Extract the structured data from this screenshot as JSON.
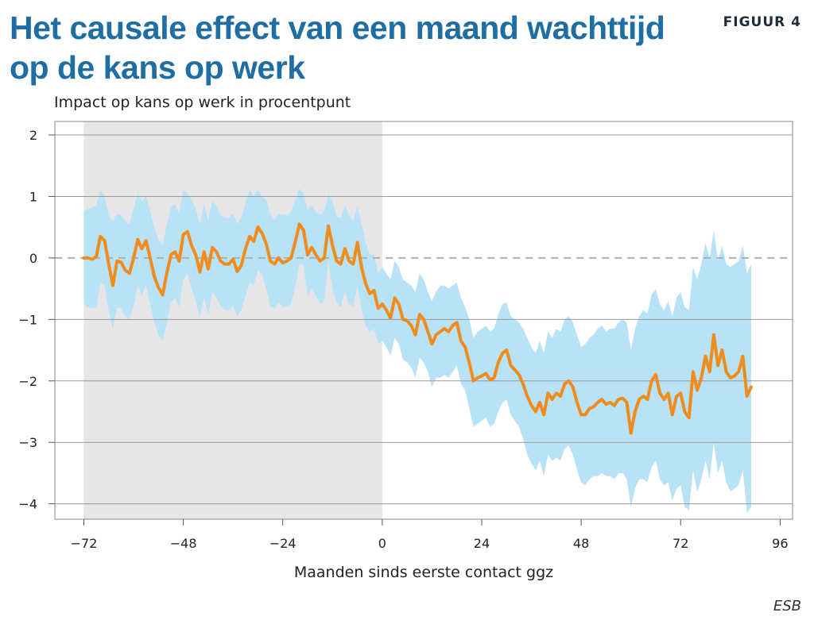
{
  "header": {
    "title": "Het causale effect van een maand wachttijd op de kans op werk",
    "figure_label": "FIGUUR 4"
  },
  "source": "ESB",
  "chart_data": {
    "type": "line",
    "title": "Het causale effect van een maand wachttijd op de kans op werk",
    "xlabel": "Maanden sinds eerste contact ggz",
    "ylabel": "Impact op kans op werk in procentpunt",
    "xlim": [
      -79,
      99
    ],
    "ylim": [
      -4.25,
      2.22
    ],
    "x_ticks": [
      -72,
      -48,
      -24,
      0,
      24,
      48,
      72,
      96
    ],
    "x_tick_labels": [
      "−72",
      "−48",
      "−24",
      "0",
      "24",
      "48",
      "72",
      "96"
    ],
    "y_ticks": [
      2,
      1,
      0,
      -1,
      -2,
      -3,
      -4
    ],
    "y_tick_labels": [
      "2",
      "1",
      "0",
      "−1",
      "−2",
      "−3",
      "−4"
    ],
    "grid": "horizontal",
    "reference_line": {
      "y": 0,
      "style": "dashed"
    },
    "shaded_region": {
      "x_start": -72,
      "x_end": 0
    },
    "colors": {
      "line": "#f08c1e",
      "band": "#b8e2f5",
      "shade": "#e6e6e8",
      "grid": "#999999",
      "reference": "#b0b0b0"
    },
    "x_start": -72,
    "x_step": 1,
    "values": [
      0.0,
      0.0,
      -0.02,
      0.02,
      0.35,
      0.28,
      -0.1,
      -0.45,
      -0.05,
      -0.07,
      -0.2,
      -0.25,
      0.0,
      0.3,
      0.15,
      0.28,
      0.0,
      -0.3,
      -0.48,
      -0.6,
      -0.25,
      0.05,
      0.1,
      -0.05,
      0.38,
      0.43,
      0.2,
      0.05,
      -0.23,
      0.1,
      -0.18,
      0.17,
      0.1,
      -0.05,
      -0.1,
      -0.1,
      -0.02,
      -0.22,
      -0.12,
      0.15,
      0.35,
      0.27,
      0.5,
      0.4,
      0.23,
      -0.05,
      -0.1,
      0.0,
      -0.08,
      -0.05,
      0.0,
      0.26,
      0.55,
      0.45,
      0.05,
      0.17,
      0.05,
      -0.05,
      0.0,
      0.52,
      0.2,
      -0.05,
      -0.1,
      0.15,
      -0.05,
      -0.1,
      0.25,
      -0.15,
      -0.42,
      -0.58,
      -0.53,
      -0.82,
      -0.75,
      -0.85,
      -0.98,
      -0.65,
      -0.75,
      -1.0,
      -1.02,
      -1.1,
      -1.25,
      -0.92,
      -1.0,
      -1.2,
      -1.4,
      -1.25,
      -1.2,
      -1.15,
      -1.2,
      -1.1,
      -1.05,
      -1.35,
      -1.45,
      -1.7,
      -2.0,
      -1.95,
      -1.92,
      -1.88,
      -1.98,
      -1.95,
      -1.7,
      -1.55,
      -1.5,
      -1.75,
      -1.82,
      -1.9,
      -2.05,
      -2.25,
      -2.4,
      -2.5,
      -2.35,
      -2.55,
      -2.2,
      -2.3,
      -2.2,
      -2.25,
      -2.05,
      -2.0,
      -2.1,
      -2.35,
      -2.55,
      -2.55,
      -2.45,
      -2.42,
      -2.35,
      -2.3,
      -2.38,
      -2.35,
      -2.4,
      -2.3,
      -2.28,
      -2.35,
      -2.85,
      -2.5,
      -2.3,
      -2.25,
      -2.3,
      -2.0,
      -1.9,
      -2.2,
      -2.3,
      -2.2,
      -2.55,
      -2.25,
      -2.2,
      -2.5,
      -2.6,
      -1.85,
      -2.15,
      -1.95,
      -1.6,
      -1.85,
      -1.25,
      -1.75,
      -1.5,
      -1.85,
      -1.95,
      -1.92,
      -1.85,
      -1.6,
      -2.25,
      -2.1
    ],
    "upper": [
      0.75,
      0.8,
      0.82,
      0.85,
      1.1,
      1.0,
      0.7,
      0.6,
      0.72,
      0.7,
      0.6,
      0.55,
      0.8,
      1.05,
      0.92,
      1.0,
      0.75,
      0.5,
      0.3,
      0.2,
      0.55,
      0.82,
      0.88,
      0.72,
      1.1,
      1.05,
      0.95,
      0.8,
      0.55,
      0.88,
      0.6,
      0.92,
      0.85,
      0.7,
      0.65,
      0.65,
      0.72,
      0.55,
      0.65,
      0.9,
      1.1,
      1.0,
      1.12,
      1.0,
      0.95,
      0.72,
      0.62,
      0.72,
      0.7,
      0.7,
      0.75,
      0.95,
      1.12,
      1.05,
      0.78,
      0.85,
      0.75,
      0.7,
      0.75,
      1.05,
      0.92,
      0.68,
      0.65,
      0.85,
      0.7,
      0.6,
      0.85,
      0.55,
      0.25,
      0.05,
      0.05,
      -0.25,
      -0.15,
      -0.25,
      -0.35,
      -0.05,
      -0.15,
      -0.35,
      -0.4,
      -0.45,
      -0.55,
      -0.25,
      -0.35,
      -0.55,
      -0.7,
      -0.55,
      -0.45,
      -0.45,
      -0.5,
      -0.45,
      -0.4,
      -0.65,
      -0.8,
      -1.0,
      -1.3,
      -1.2,
      -1.15,
      -1.1,
      -1.2,
      -1.15,
      -0.92,
      -0.75,
      -0.72,
      -0.95,
      -1.0,
      -1.05,
      -1.15,
      -1.3,
      -1.45,
      -1.55,
      -1.35,
      -1.55,
      -1.2,
      -1.3,
      -1.15,
      -1.2,
      -1.0,
      -0.95,
      -1.05,
      -1.25,
      -1.45,
      -1.4,
      -1.3,
      -1.25,
      -1.15,
      -1.1,
      -1.2,
      -1.15,
      -1.15,
      -1.05,
      -1.0,
      -1.05,
      -1.5,
      -1.15,
      -0.95,
      -0.85,
      -0.9,
      -0.6,
      -0.5,
      -0.75,
      -0.85,
      -0.7,
      -0.95,
      -0.65,
      -0.55,
      -0.8,
      -0.85,
      -0.15,
      -0.35,
      -0.1,
      0.25,
      0.0,
      0.45,
      -0.05,
      0.2,
      -0.1,
      -0.15,
      -0.1,
      -0.05,
      0.2,
      -0.25,
      -0.1
    ],
    "lower": [
      -0.75,
      -0.8,
      -0.82,
      -0.8,
      -0.4,
      -0.45,
      -0.85,
      -1.15,
      -0.8,
      -0.82,
      -0.95,
      -1.0,
      -0.78,
      -0.45,
      -0.6,
      -0.45,
      -0.75,
      -1.05,
      -1.25,
      -1.35,
      -1.05,
      -0.72,
      -0.65,
      -0.8,
      -0.35,
      -0.25,
      -0.5,
      -0.7,
      -0.95,
      -0.65,
      -0.92,
      -0.55,
      -0.65,
      -0.78,
      -0.85,
      -0.85,
      -0.78,
      -0.95,
      -0.85,
      -0.62,
      -0.4,
      -0.45,
      -0.2,
      -0.28,
      -0.5,
      -0.78,
      -0.82,
      -0.72,
      -0.8,
      -0.78,
      -0.75,
      -0.48,
      -0.1,
      -0.12,
      -0.62,
      -0.5,
      -0.62,
      -0.75,
      -0.7,
      -0.05,
      -0.5,
      -0.72,
      -0.8,
      -0.55,
      -0.75,
      -0.8,
      -0.45,
      -0.85,
      -1.1,
      -1.2,
      -1.15,
      -1.4,
      -1.35,
      -1.45,
      -1.6,
      -1.3,
      -1.4,
      -1.65,
      -1.7,
      -1.78,
      -1.95,
      -1.62,
      -1.7,
      -1.85,
      -2.1,
      -1.95,
      -1.95,
      -1.9,
      -1.95,
      -1.85,
      -1.75,
      -2.05,
      -2.15,
      -2.45,
      -2.75,
      -2.7,
      -2.65,
      -2.6,
      -2.75,
      -2.7,
      -2.5,
      -2.35,
      -2.3,
      -2.55,
      -2.65,
      -2.75,
      -2.95,
      -3.2,
      -3.35,
      -3.45,
      -3.3,
      -3.55,
      -3.2,
      -3.3,
      -3.25,
      -3.3,
      -3.1,
      -3.05,
      -3.2,
      -3.45,
      -3.65,
      -3.7,
      -3.6,
      -3.55,
      -3.55,
      -3.5,
      -3.55,
      -3.55,
      -3.6,
      -3.5,
      -3.5,
      -3.6,
      -4.05,
      -3.75,
      -3.6,
      -3.6,
      -3.65,
      -3.4,
      -3.3,
      -3.6,
      -3.7,
      -3.65,
      -3.95,
      -3.75,
      -3.7,
      -4.05,
      -4.1,
      -3.45,
      -3.8,
      -3.6,
      -3.3,
      -3.6,
      -3.0,
      -3.5,
      -3.3,
      -3.65,
      -3.8,
      -3.75,
      -3.7,
      -3.45,
      -4.15,
      -4.05
    ]
  }
}
